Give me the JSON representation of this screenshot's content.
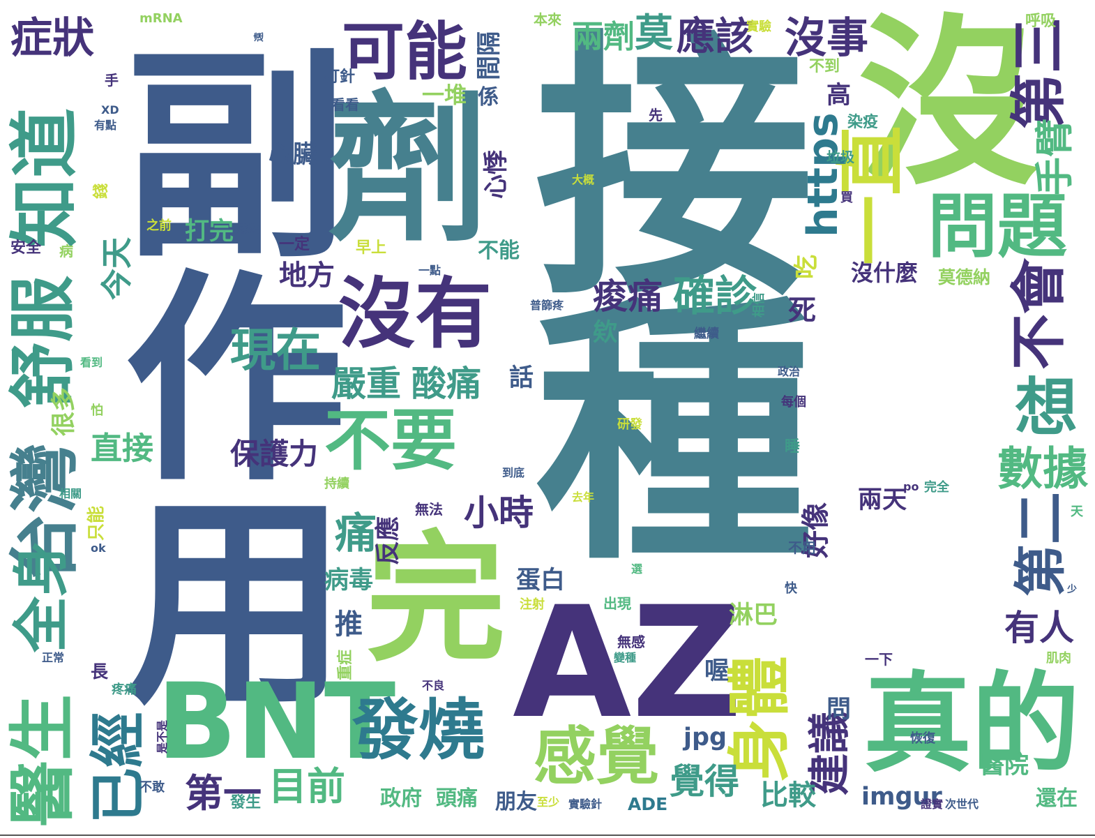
{
  "cloud": {
    "colors": [
      "#3e5b8a",
      "#46808e",
      "#93d160",
      "#45337a",
      "#52b982",
      "#2e7a8e",
      "#3f9b89",
      "#c9de3a"
    ],
    "words": [
      {
        "text": "接種",
        "color": "#46808e"
      },
      {
        "text": "副作用",
        "color": "#3e5b8a"
      },
      {
        "text": "沒",
        "color": "#93d160"
      },
      {
        "text": "劑",
        "color": "#46808e"
      },
      {
        "text": "AZ",
        "color": "#45337a"
      },
      {
        "text": "BNT",
        "color": "#52b982"
      },
      {
        "text": "完",
        "color": "#93d160"
      },
      {
        "text": "真的",
        "color": "#52b982"
      },
      {
        "text": "沒有",
        "color": "#45337a"
      },
      {
        "text": "可能",
        "color": "#45337a"
      },
      {
        "text": "不要",
        "color": "#52b982"
      },
      {
        "text": "發燒",
        "color": "#2e7a8e"
      },
      {
        "text": "感覺",
        "color": "#93d160"
      },
      {
        "text": "知道",
        "color": "#3f9b89"
      },
      {
        "text": "舒服",
        "color": "#3f9b89"
      },
      {
        "text": "台灣",
        "color": "#46808e"
      },
      {
        "text": "醫生",
        "color": "#52b982"
      },
      {
        "text": "已經",
        "color": "#2e7a8e"
      },
      {
        "text": "全身",
        "color": "#3f9b89"
      },
      {
        "text": "問題",
        "color": "#52b982"
      },
      {
        "text": "一直",
        "color": "#c9de3a"
      },
      {
        "text": "身體",
        "color": "#c9de3a"
      },
      {
        "text": "https",
        "color": "#2e7a8e"
      },
      {
        "text": "不會",
        "color": "#45337a"
      },
      {
        "text": "第三",
        "color": "#45337a"
      },
      {
        "text": "第二",
        "color": "#3e5b8a"
      },
      {
        "text": "想",
        "color": "#3f9b89"
      },
      {
        "text": "數據",
        "color": "#52b982"
      },
      {
        "text": "建議",
        "color": "#45337a"
      },
      {
        "text": "症狀",
        "color": "#45337a"
      },
      {
        "text": "沒事",
        "color": "#45337a"
      },
      {
        "text": "應該",
        "color": "#45337a"
      },
      {
        "text": "兩劑",
        "color": "#52b982"
      },
      {
        "text": "莫",
        "color": "#3f9b89"
      },
      {
        "text": "現在",
        "color": "#3f9b89"
      },
      {
        "text": "確診",
        "color": "#3f9b89"
      },
      {
        "text": "痠痛",
        "color": "#45337a"
      },
      {
        "text": "嚴重",
        "color": "#3f9b89"
      },
      {
        "text": "酸痛",
        "color": "#3f9b89"
      },
      {
        "text": "保護力",
        "color": "#45337a"
      },
      {
        "text": "直接",
        "color": "#52b982"
      },
      {
        "text": "小時",
        "color": "#45337a"
      },
      {
        "text": "第一",
        "color": "#45337a"
      },
      {
        "text": "目前",
        "color": "#52b982"
      },
      {
        "text": "覺得",
        "color": "#3f9b89"
      },
      {
        "text": "比較",
        "color": "#3f9b89"
      },
      {
        "text": "醫院",
        "color": "#52b982"
      },
      {
        "text": "有人",
        "color": "#45337a"
      },
      {
        "text": "imgur",
        "color": "#3e5b8a"
      },
      {
        "text": "jpg",
        "color": "#3e5b8a"
      },
      {
        "text": "手臂",
        "color": "#52b982"
      },
      {
        "text": "沒什麼",
        "color": "#45337a"
      },
      {
        "text": "地方",
        "color": "#45337a"
      },
      {
        "text": "心臟",
        "color": "#3e5b8a"
      },
      {
        "text": "今天",
        "color": "#3f9b89"
      },
      {
        "text": "打完",
        "color": "#52b982"
      },
      {
        "text": "很多",
        "color": "#93d160"
      },
      {
        "text": "痛",
        "color": "#3f9b89"
      },
      {
        "text": "病毒",
        "color": "#3f9b89"
      },
      {
        "text": "推",
        "color": "#3e5b8a"
      },
      {
        "text": "反應",
        "color": "#45337a"
      },
      {
        "text": "蛋白",
        "color": "#3e5b8a"
      },
      {
        "text": "淋巴",
        "color": "#93d160"
      },
      {
        "text": "好像",
        "color": "#45337a"
      },
      {
        "text": "兩天",
        "color": "#45337a"
      },
      {
        "text": "政府",
        "color": "#52b982"
      },
      {
        "text": "頭痛",
        "color": "#52b982"
      },
      {
        "text": "朋友",
        "color": "#3e5b8a"
      },
      {
        "text": "ADE",
        "color": "#2e7a8e"
      },
      {
        "text": "還在",
        "color": "#52b982"
      },
      {
        "text": "問",
        "color": "#3e5b8a"
      },
      {
        "text": "喔",
        "color": "#3e5b8a"
      },
      {
        "text": "死",
        "color": "#45337a"
      },
      {
        "text": "欸",
        "color": "#3f9b89"
      },
      {
        "text": "話",
        "color": "#3e5b8a"
      },
      {
        "text": "吃",
        "color": "#c9de3a"
      },
      {
        "text": "一堆",
        "color": "#93d160"
      },
      {
        "text": "係",
        "color": "#3e5b8a"
      },
      {
        "text": "心悸",
        "color": "#45337a"
      },
      {
        "text": "間隔",
        "color": "#3e5b8a"
      },
      {
        "text": "高",
        "color": "#45337a"
      },
      {
        "text": "不能",
        "color": "#3f9b89"
      },
      {
        "text": "一定",
        "color": "#45337a"
      },
      {
        "text": "早上",
        "color": "#c9de3a"
      },
      {
        "text": "染疫",
        "color": "#3f9b89"
      },
      {
        "text": "垃圾",
        "color": "#3f9b89"
      },
      {
        "text": "莫德納",
        "color": "#93d160"
      },
      {
        "text": "不到",
        "color": "#93d160"
      },
      {
        "text": "打針",
        "color": "#3e5b8a"
      },
      {
        "text": "看看",
        "color": "#3e5b8a"
      },
      {
        "text": "mRNA",
        "color": "#93d160"
      },
      {
        "text": "本來",
        "color": "#93d160"
      },
      {
        "text": "實驗",
        "color": "#c9de3a"
      },
      {
        "text": "呼吸",
        "color": "#93d160"
      },
      {
        "text": "手",
        "color": "#45337a"
      },
      {
        "text": "XD",
        "color": "#3e5b8a"
      },
      {
        "text": "有點",
        "color": "#3e5b8a"
      },
      {
        "text": "錢",
        "color": "#c9de3a"
      },
      {
        "text": "先",
        "color": "#45337a"
      },
      {
        "text": "大概",
        "color": "#c9de3a"
      },
      {
        "text": "買",
        "color": "#45337a"
      },
      {
        "text": "之前",
        "color": "#c9de3a"
      },
      {
        "text": "感染",
        "color": "#3e5b8a"
      },
      {
        "text": "安全",
        "color": "#45337a"
      },
      {
        "text": "病",
        "color": "#93d160"
      },
      {
        "text": "一點",
        "color": "#3e5b8a"
      },
      {
        "text": "普篩疼",
        "color": "#3e5b8a"
      },
      {
        "text": "相信",
        "color": "#3f9b89"
      },
      {
        "text": "繼續",
        "color": "#3e5b8a"
      },
      {
        "text": "政治",
        "color": "#3e5b8a"
      },
      {
        "text": "每個",
        "color": "#45337a"
      },
      {
        "text": "看到",
        "color": "#52b982"
      },
      {
        "text": "怕",
        "color": "#93d160"
      },
      {
        "text": "睡",
        "color": "#3f9b89"
      },
      {
        "text": "研發",
        "color": "#c9de3a"
      },
      {
        "text": "到底",
        "color": "#3e5b8a"
      },
      {
        "text": "持續",
        "color": "#93d160"
      },
      {
        "text": "相關",
        "color": "#3f9b89"
      },
      {
        "text": "去年",
        "color": "#c9de3a"
      },
      {
        "text": "無法",
        "color": "#45337a"
      },
      {
        "text": "po",
        "color": "#45337a"
      },
      {
        "text": "完全",
        "color": "#3f9b89"
      },
      {
        "text": "只能",
        "color": "#c9de3a"
      },
      {
        "text": "ok",
        "color": "#3e5b8a"
      },
      {
        "text": "天",
        "color": "#52b982"
      },
      {
        "text": "不用",
        "color": "#3e5b8a"
      },
      {
        "text": "選",
        "color": "#52b982"
      },
      {
        "text": "快",
        "color": "#3e5b8a"
      },
      {
        "text": "少",
        "color": "#3e5b8a"
      },
      {
        "text": "出現",
        "color": "#52b982"
      },
      {
        "text": "注射",
        "color": "#c9de3a"
      },
      {
        "text": "無感",
        "color": "#45337a"
      },
      {
        "text": "變種",
        "color": "#3f9b89"
      },
      {
        "text": "正常",
        "color": "#3e5b8a"
      },
      {
        "text": "長",
        "color": "#45337a"
      },
      {
        "text": "疼痛",
        "color": "#3f9b89"
      },
      {
        "text": "重症",
        "color": "#93d160"
      },
      {
        "text": "是不是",
        "color": "#45337a"
      },
      {
        "text": "不良",
        "color": "#45337a"
      },
      {
        "text": "一下",
        "color": "#45337a"
      },
      {
        "text": "肌肉",
        "color": "#93d160"
      },
      {
        "text": "不敢",
        "color": "#3e5b8a"
      },
      {
        "text": "發生",
        "color": "#3f9b89"
      },
      {
        "text": "至少",
        "color": "#c9de3a"
      },
      {
        "text": "實驗針",
        "color": "#3e5b8a"
      },
      {
        "text": "次世代",
        "color": "#3e5b8a"
      },
      {
        "text": "證實",
        "color": "#45337a"
      },
      {
        "text": "恢復",
        "color": "#3e5b8a"
      },
      {
        "text": "遠",
        "color": "#3e5b8a"
      }
    ]
  }
}
